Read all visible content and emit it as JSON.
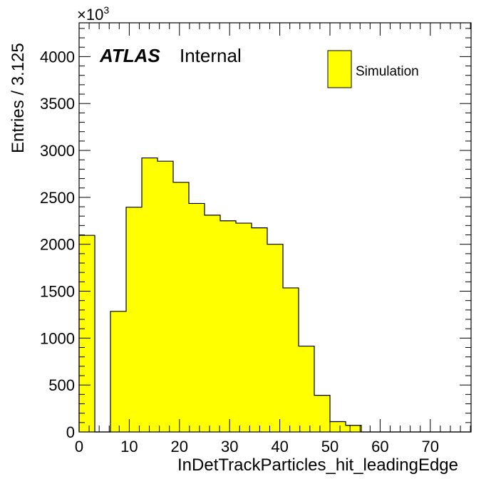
{
  "chart_data": {
    "type": "bar",
    "histogram": true,
    "xlabel": "InDetTrackParticles_hit_leadingEdge",
    "ylabel": "Entries / 3.125",
    "y_multiplier": "×10",
    "y_multiplier_exponent": "3",
    "atlas_label": "ATLAS",
    "atlas_sublabel": "Internal",
    "xlim": [
      0,
      78.125
    ],
    "ylim": [
      0,
      4360
    ],
    "x_ticks": [
      0,
      10,
      20,
      30,
      40,
      50,
      60,
      70
    ],
    "y_ticks": [
      0,
      500,
      1000,
      1500,
      2000,
      2500,
      3000,
      3500,
      4000
    ],
    "bin_width": 3.125,
    "fill_color": "#ffff00",
    "line_color": "#000000",
    "legend_position": "top-right",
    "series": [
      {
        "name": "Simulation",
        "values": [
          2095,
          0,
          1285,
          2395,
          2920,
          2885,
          2660,
          2435,
          2310,
          2250,
          2225,
          2175,
          2000,
          1535,
          915,
          390,
          110,
          70,
          0,
          0,
          0,
          0,
          0,
          0,
          0
        ]
      }
    ]
  }
}
